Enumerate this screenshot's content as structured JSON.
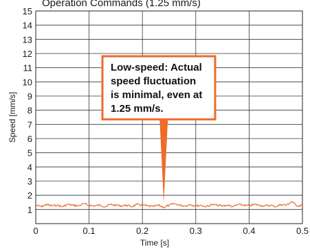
{
  "chart_data": {
    "type": "line",
    "title": "Operation Commands (1.25 mm/s)",
    "xlabel": "Time [s]",
    "ylabel": "Speed [mm/s]",
    "xlim": [
      0,
      0.5
    ],
    "ylim": [
      0,
      15
    ],
    "x_ticks": [
      "0",
      "0.1",
      "0.2",
      "0.3",
      "0.4",
      "0.5"
    ],
    "y_ticks": [
      "1",
      "2",
      "3",
      "4",
      "5",
      "6",
      "7",
      "8",
      "9",
      "10",
      "11",
      "12",
      "13",
      "14",
      "15"
    ],
    "grid": true,
    "series": [
      {
        "color": "#f06a2a",
        "x": [
          0,
          0.01,
          0.02,
          0.03,
          0.04,
          0.05,
          0.06,
          0.07,
          0.08,
          0.09,
          0.1,
          0.11,
          0.12,
          0.13,
          0.14,
          0.15,
          0.16,
          0.17,
          0.18,
          0.19,
          0.2,
          0.21,
          0.22,
          0.23,
          0.24,
          0.25,
          0.26,
          0.27,
          0.28,
          0.29,
          0.3,
          0.31,
          0.32,
          0.33,
          0.34,
          0.35,
          0.36,
          0.37,
          0.38,
          0.39,
          0.4,
          0.41,
          0.42,
          0.43,
          0.44,
          0.45,
          0.46,
          0.47,
          0.48,
          0.49,
          0.5
        ],
        "y": [
          1.3,
          1.2,
          1.35,
          1.25,
          1.3,
          1.2,
          1.35,
          1.3,
          1.25,
          1.4,
          1.3,
          1.25,
          1.3,
          1.2,
          1.35,
          1.3,
          1.25,
          1.3,
          1.2,
          1.35,
          1.3,
          1.25,
          1.2,
          1.3,
          1.15,
          1.3,
          1.4,
          1.3,
          1.25,
          1.35,
          1.25,
          1.3,
          1.2,
          1.35,
          1.3,
          1.25,
          1.3,
          1.2,
          1.35,
          1.3,
          1.25,
          1.35,
          1.3,
          1.25,
          1.3,
          1.2,
          1.35,
          1.3,
          1.55,
          1.25,
          1.3
        ]
      }
    ],
    "annotations": [
      {
        "lines": [
          "Low-speed: Actual",
          "speed fluctuation",
          "is minimal, even at",
          "1.25 mm/s."
        ],
        "pointer_x": 0.24,
        "pointer_y": 1.25,
        "border_color": "#f06a2a"
      }
    ]
  }
}
